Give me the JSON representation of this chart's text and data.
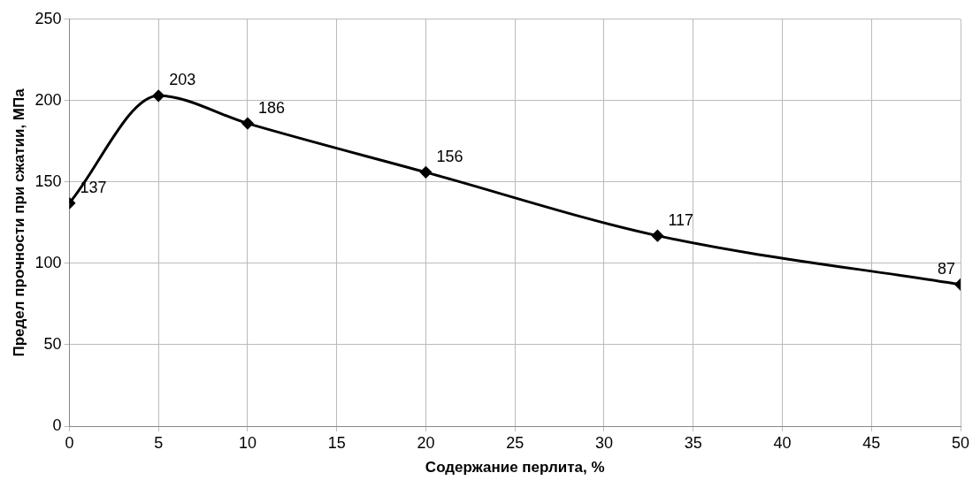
{
  "chart_data": {
    "type": "line",
    "xlabel": "Содержание перлита, %",
    "ylabel": "Предел прочности при сжатии, МПа",
    "x": [
      0,
      5,
      10,
      20,
      33,
      50
    ],
    "series": [
      {
        "color": "#000000",
        "values": [
          137,
          203,
          186,
          156,
          117,
          87
        ]
      }
    ],
    "xlim": [
      0,
      50
    ],
    "xticks": [
      0,
      5,
      10,
      15,
      20,
      25,
      30,
      35,
      40,
      45,
      50
    ],
    "ylim": [
      0,
      250
    ],
    "yticks": [
      0,
      50,
      100,
      150,
      200,
      250
    ],
    "grid": true,
    "marker": "diamond",
    "line_style": "solid",
    "data_labels": true,
    "legend": false
  }
}
